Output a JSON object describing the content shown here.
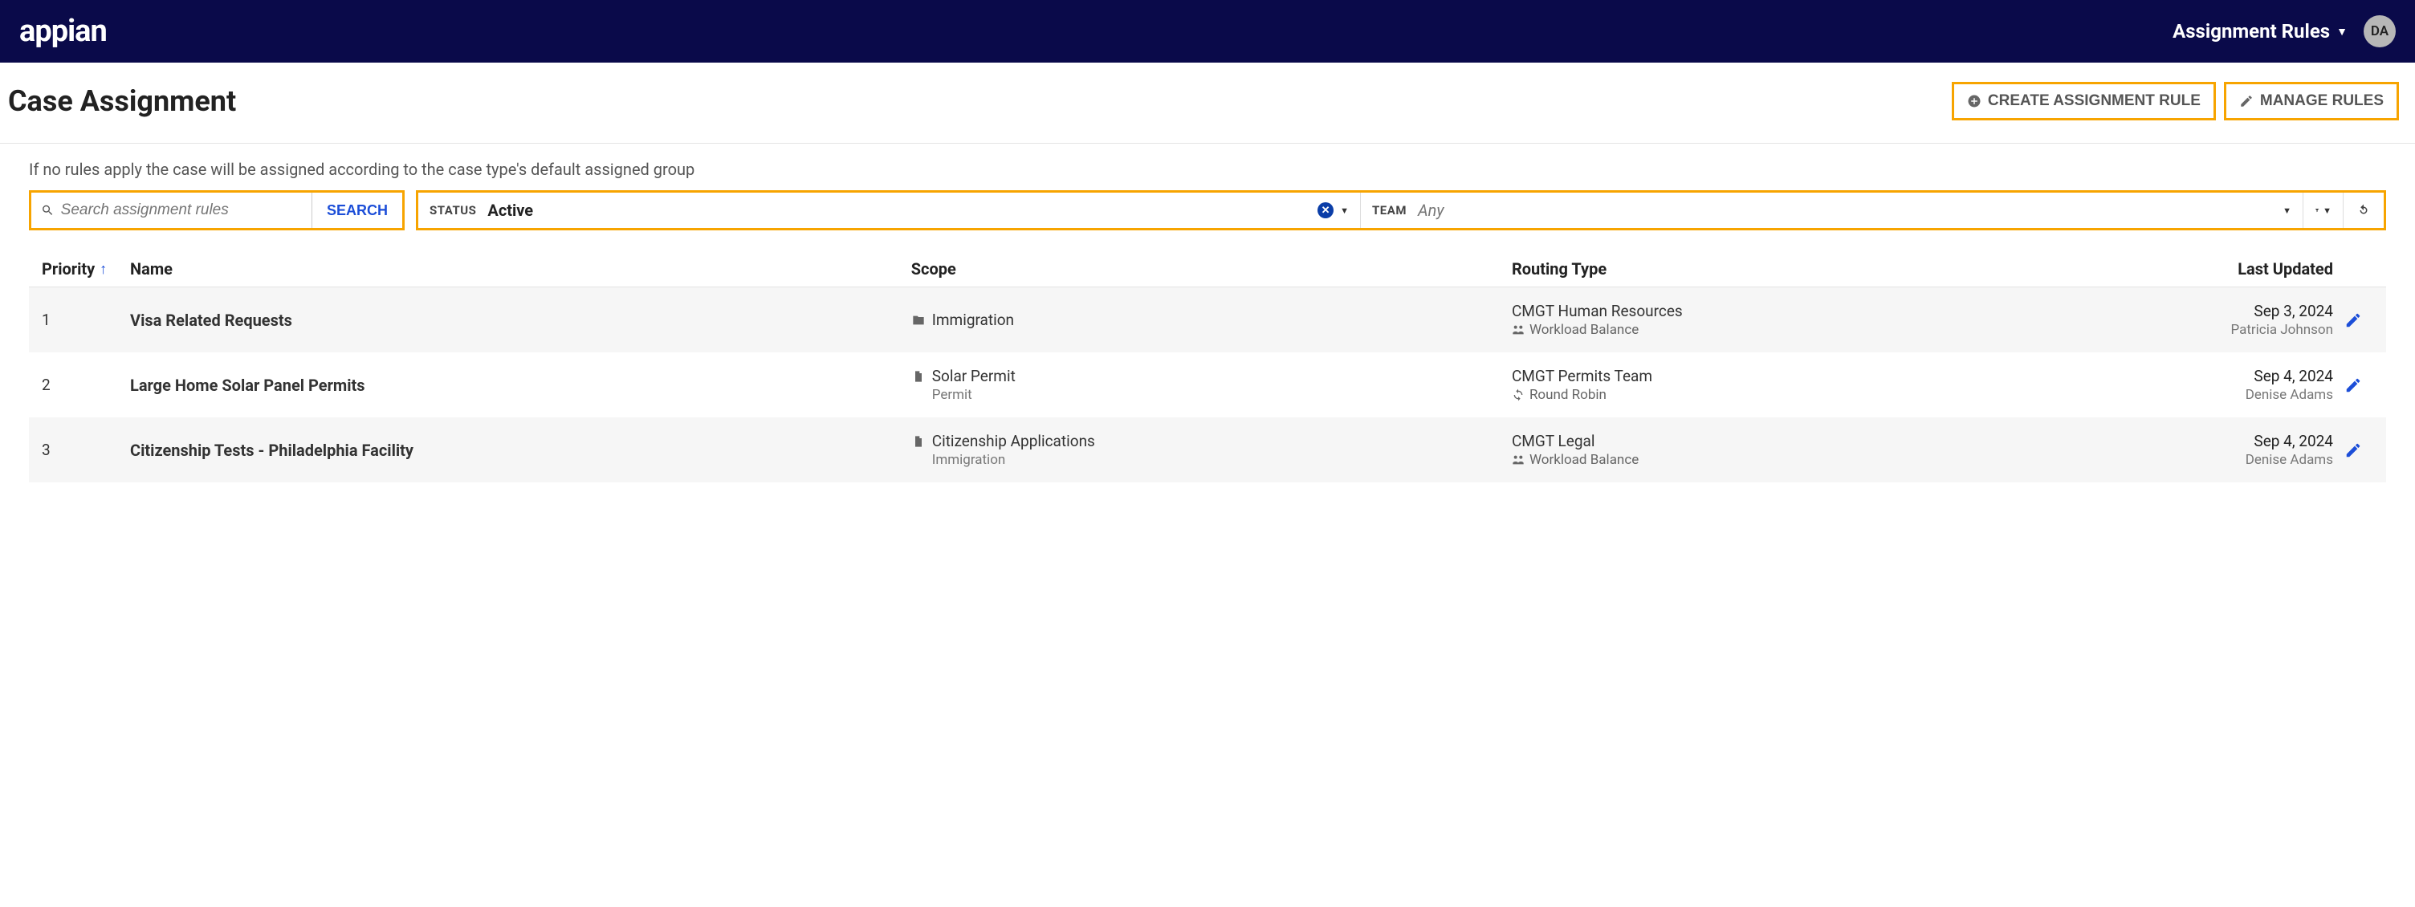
{
  "colors": {
    "topbar_bg": "#0a0a4a",
    "highlight_border": "#f7a400",
    "link": "#1c4ed8",
    "text": "#222222",
    "muted": "#777777"
  },
  "topbar": {
    "logo": "appian",
    "nav_label": "Assignment Rules",
    "avatar_initials": "DA"
  },
  "header": {
    "title": "Case Assignment",
    "create_button": "CREATE ASSIGNMENT RULE",
    "manage_button": "MANAGE RULES"
  },
  "hint": "If no rules apply the case will be assigned according to the case type's default assigned group",
  "search": {
    "placeholder": "Search assignment rules",
    "button": "SEARCH"
  },
  "filters": {
    "status_label": "STATUS",
    "status_value": "Active",
    "team_label": "TEAM",
    "team_value": "Any"
  },
  "table": {
    "columns": {
      "priority": "Priority",
      "name": "Name",
      "scope": "Scope",
      "routing": "Routing Type",
      "updated": "Last Updated"
    },
    "rows": [
      {
        "priority": "1",
        "name": "Visa Related Requests",
        "scope_icon": "folder",
        "scope": "Immigration",
        "scope_sub": "",
        "routing": "CMGT Human Resources",
        "routing_sub_icon": "balance",
        "routing_sub": "Workload Balance",
        "updated_date": "Sep 3, 2024",
        "updated_by": "Patricia Johnson"
      },
      {
        "priority": "2",
        "name": "Large Home Solar Panel Permits",
        "scope_icon": "file",
        "scope": "Solar Permit",
        "scope_sub": "Permit",
        "routing": "CMGT Permits Team",
        "routing_sub_icon": "cycle",
        "routing_sub": "Round Robin",
        "updated_date": "Sep 4, 2024",
        "updated_by": "Denise Adams"
      },
      {
        "priority": "3",
        "name": "Citizenship Tests - Philadelphia Facility",
        "scope_icon": "file",
        "scope": "Citizenship Applications",
        "scope_sub": "Immigration",
        "routing": "CMGT Legal",
        "routing_sub_icon": "balance",
        "routing_sub": "Workload Balance",
        "updated_date": "Sep 4, 2024",
        "updated_by": "Denise Adams"
      }
    ]
  }
}
